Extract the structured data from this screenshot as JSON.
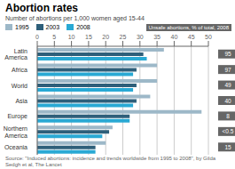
{
  "chart_data": {
    "type": "bar",
    "orientation": "horizontal",
    "title": "Abortion rates",
    "subtitle": "Number of abortions per 1,000 women aged 15-44",
    "categories": [
      "Latin\nAmerica",
      "Africa",
      "World",
      "Asia",
      "Europe",
      "Northern\nAmerica",
      "Oceania"
    ],
    "series": [
      {
        "name": "1995",
        "color": "#9db8c8",
        "values": [
          37,
          35,
          35,
          33,
          48,
          22,
          20
        ]
      },
      {
        "name": "2003",
        "color": "#2e5f7a",
        "values": [
          31,
          29,
          29,
          29,
          27,
          21,
          17
        ]
      },
      {
        "name": "2008",
        "color": "#29a9d4",
        "values": [
          32,
          28,
          28,
          28,
          27,
          19,
          17
        ]
      }
    ],
    "xlim": [
      0,
      50
    ],
    "xticks": [
      0,
      5,
      10,
      15,
      20,
      25,
      30,
      35,
      40,
      45,
      50
    ],
    "grid": true,
    "legend": "top left",
    "unsafe_label": "Unsafe abortions, % of total, 2008",
    "unsafe_pct": [
      "95",
      "97",
      "49",
      "40",
      "8",
      "<0.5",
      "15"
    ],
    "source": "Source: \"Induced abortions: incidence and trends worldwide from 1995 to 2008\", by Gilda Sedgh et al, The Lancet"
  }
}
